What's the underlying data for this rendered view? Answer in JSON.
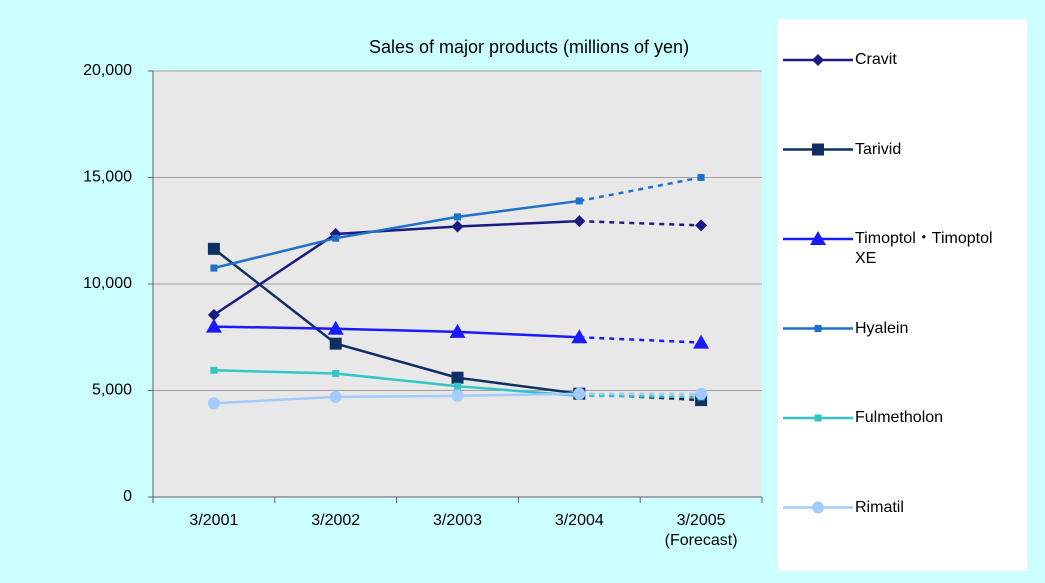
{
  "chart_data": {
    "type": "line",
    "title": "Sales of major products  (millions of yen)",
    "categories": [
      "3/2001",
      "3/2002",
      "3/2003",
      "3/2004",
      "3/2005\n(Forecast)"
    ],
    "series": [
      {
        "name": "Cravit",
        "color": "#1a1a80",
        "marker": "diamond",
        "values": [
          8550,
          12350,
          12700,
          12950,
          12750
        ]
      },
      {
        "name": "Tarivid",
        "color": "#0f2f62",
        "marker": "square",
        "values": [
          11650,
          7200,
          5600,
          4850,
          4550
        ]
      },
      {
        "name": "Timoptol・Timoptol XE",
        "color": "#1a1aff",
        "marker": "triangle",
        "values": [
          8000,
          7900,
          7750,
          7500,
          7250
        ]
      },
      {
        "name": "Hyalein",
        "color": "#1f70c8",
        "marker": "small-square",
        "values": [
          10750,
          12150,
          13150,
          13900,
          15000
        ]
      },
      {
        "name": "Fulmetholon",
        "color": "#33c6c6",
        "marker": "small-square",
        "values": [
          5950,
          5800,
          5200,
          4750,
          4700
        ]
      },
      {
        "name": "Rimatil",
        "color": "#a3cbff",
        "marker": "circle",
        "values": [
          4400,
          4700,
          4750,
          4850,
          4850
        ]
      }
    ],
    "ylim": [
      0,
      20000
    ],
    "yticks": [
      0,
      {
        "value": 5000,
        "label": "5,000"
      },
      {
        "value": 10000,
        "label": "10,000"
      },
      {
        "value": 15000,
        "label": "15,000"
      },
      {
        "value": 20000,
        "label": "20,000"
      }
    ],
    "grid": true,
    "dashed_last_segment": true,
    "legend": "right"
  }
}
